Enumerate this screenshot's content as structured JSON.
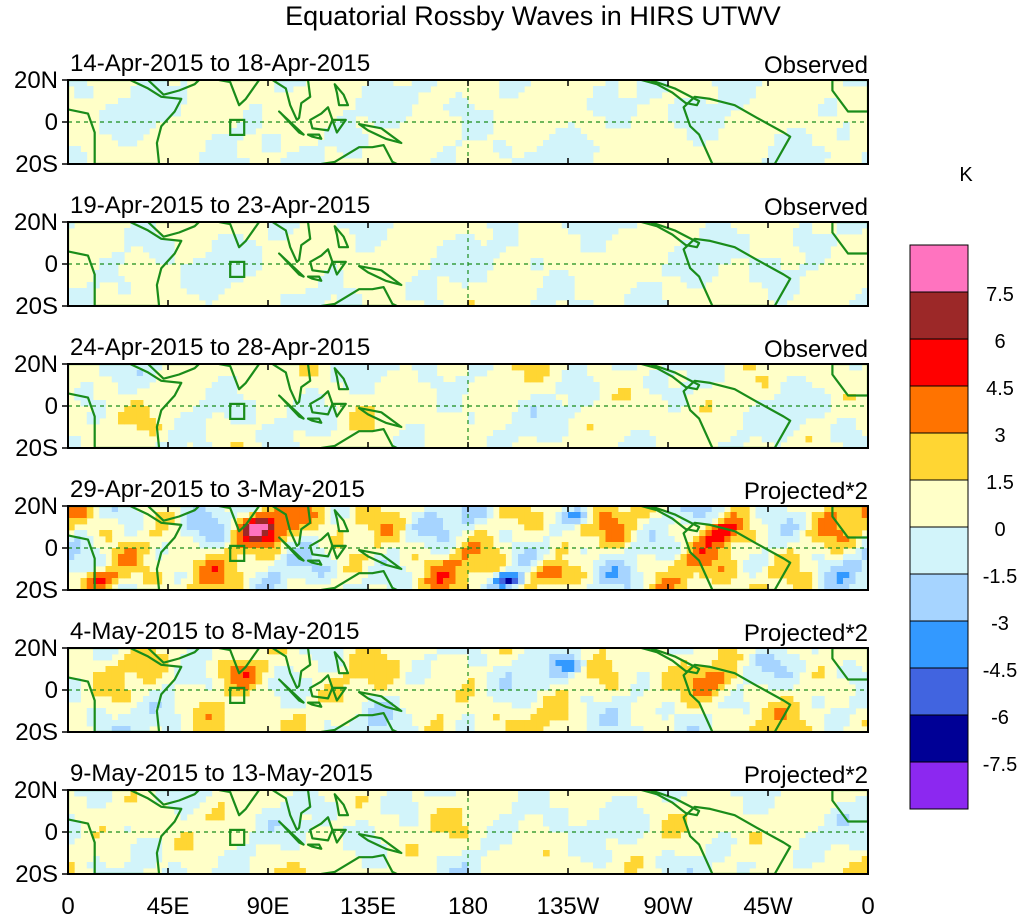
{
  "chart_data": {
    "type": "heatmap",
    "title": "Equatorial Rossby Waves in HIRS UTWV",
    "units": "K",
    "x_ticks": [
      "0",
      "45E",
      "90E",
      "135E",
      "180",
      "135W",
      "90W",
      "45W",
      "0"
    ],
    "y_ticks": [
      "20N",
      "0",
      "20S"
    ],
    "colorbar": {
      "levels": [
        "7.5",
        "6",
        "4.5",
        "3",
        "1.5",
        "0",
        "-1.5",
        "-3",
        "-4.5",
        "-6",
        "-7.5"
      ],
      "colors": [
        "#ff73bf",
        "#9c2828",
        "#ff0000",
        "#ff7300",
        "#ffd633",
        "#ffffc8",
        "#d2f4fa",
        "#a6d4ff",
        "#3399ff",
        "#4164e0",
        "#000096",
        "#8c28f0"
      ]
    },
    "panels": [
      {
        "date_range": "14-Apr-2015 to 18-Apr-2015",
        "label": "Observed",
        "amp": 0.55,
        "seed": 3
      },
      {
        "date_range": "19-Apr-2015 to 23-Apr-2015",
        "label": "Observed",
        "amp": 0.6,
        "seed": 11
      },
      {
        "date_range": "24-Apr-2015 to 28-Apr-2015",
        "label": "Observed",
        "amp": 0.9,
        "seed": 19
      },
      {
        "date_range": "29-Apr-2015 to 3-May-2015",
        "label": "Projected*2",
        "amp": 1.9,
        "seed": 27
      },
      {
        "date_range": "4-May-2015 to 8-May-2015",
        "label": "Projected*2",
        "amp": 1.3,
        "seed": 35
      },
      {
        "date_range": "9-May-2015 to 13-May-2015",
        "label": "Projected*2",
        "amp": 0.95,
        "seed": 43
      }
    ]
  }
}
